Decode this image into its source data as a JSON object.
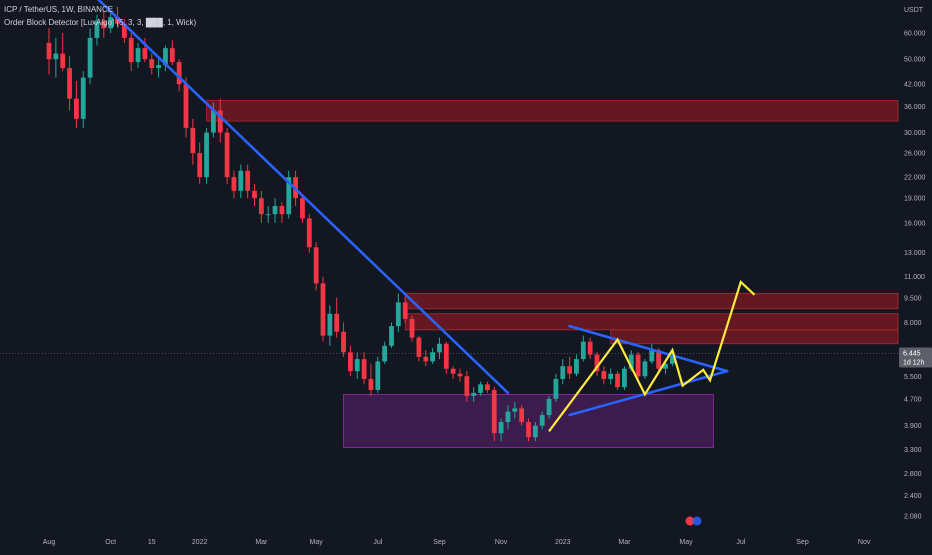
{
  "header": {
    "symbol_line": "ICP / TetherUS, 1W, BINANCE",
    "indicator_line": "Order Block Detector [LuxAlgo] (5, 3, 3, ███, 1, Wick)"
  },
  "colors": {
    "background": "#131722",
    "bull": "#26a69a",
    "bear": "#f23645",
    "trendline": "#2962ff",
    "projection": "#ffeb3b",
    "order_block_bear": "#801922",
    "order_block_bull": "#4a1f5c",
    "price_tag": "#5d606b"
  },
  "chart_data": {
    "type": "candlestick",
    "timeframe": "1W",
    "y_scale": "log",
    "y_unit_label": "USDT",
    "y_ticks": [
      60,
      50,
      42,
      36,
      30,
      26,
      22,
      19,
      16,
      13,
      11,
      9.5,
      8,
      6.445,
      5.5,
      4.7,
      3.9,
      3.3,
      2.8,
      2.4,
      2.08
    ],
    "y_tick_labels": [
      "60.000",
      "50.000",
      "42.000",
      "36.000",
      "30.000",
      "26.000",
      "22.000",
      "19.000",
      "16.000",
      "13.000",
      "11.000",
      "9.500",
      "8.000",
      "",
      "5.500",
      "4.700",
      "3.900",
      "3.300",
      "2.800",
      "2.400",
      "2.080"
    ],
    "x_ticks": [
      {
        "label": "Aug",
        "week": 0
      },
      {
        "label": "Oct",
        "week": 9
      },
      {
        "label": "15",
        "week": 15
      },
      {
        "label": "2022",
        "week": 22
      },
      {
        "label": "Mar",
        "week": 31
      },
      {
        "label": "May",
        "week": 39
      },
      {
        "label": "Jul",
        "week": 48
      },
      {
        "label": "Sep",
        "week": 57
      },
      {
        "label": "Nov",
        "week": 66
      },
      {
        "label": "2023",
        "week": 75
      },
      {
        "label": "Mar",
        "week": 84
      },
      {
        "label": "May",
        "week": 93
      },
      {
        "label": "Jul",
        "week": 101
      },
      {
        "label": "Sep",
        "week": 110
      },
      {
        "label": "Nov",
        "week": 119
      }
    ],
    "last_price": {
      "value": 6.445,
      "label": "6.445",
      "countdown": "1d 12h"
    },
    "candles": [
      {
        "o": 56,
        "h": 62,
        "l": 45,
        "c": 50
      },
      {
        "o": 50,
        "h": 58,
        "l": 44,
        "c": 52
      },
      {
        "o": 52,
        "h": 60,
        "l": 46,
        "c": 47
      },
      {
        "o": 47,
        "h": 51,
        "l": 35,
        "c": 38
      },
      {
        "o": 38,
        "h": 43,
        "l": 31,
        "c": 33
      },
      {
        "o": 33,
        "h": 46,
        "l": 31,
        "c": 44
      },
      {
        "o": 44,
        "h": 62,
        "l": 42,
        "c": 58
      },
      {
        "o": 58,
        "h": 68,
        "l": 55,
        "c": 65
      },
      {
        "o": 65,
        "h": 70,
        "l": 58,
        "c": 62
      },
      {
        "o": 62,
        "h": 70,
        "l": 60,
        "c": 67
      },
      {
        "o": 67,
        "h": 72,
        "l": 62,
        "c": 64
      },
      {
        "o": 64,
        "h": 66,
        "l": 56,
        "c": 58
      },
      {
        "o": 58,
        "h": 60,
        "l": 46,
        "c": 49
      },
      {
        "o": 49,
        "h": 56,
        "l": 47,
        "c": 54
      },
      {
        "o": 54,
        "h": 58,
        "l": 49,
        "c": 50
      },
      {
        "o": 50,
        "h": 52,
        "l": 45,
        "c": 47
      },
      {
        "o": 47,
        "h": 51,
        "l": 44,
        "c": 48
      },
      {
        "o": 48,
        "h": 55,
        "l": 46,
        "c": 54
      },
      {
        "o": 54,
        "h": 57,
        "l": 48,
        "c": 49
      },
      {
        "o": 49,
        "h": 50,
        "l": 40,
        "c": 42
      },
      {
        "o": 42,
        "h": 44,
        "l": 29,
        "c": 31
      },
      {
        "o": 31,
        "h": 33,
        "l": 24,
        "c": 26
      },
      {
        "o": 26,
        "h": 28,
        "l": 21,
        "c": 22
      },
      {
        "o": 22,
        "h": 31,
        "l": 21,
        "c": 30
      },
      {
        "o": 30,
        "h": 37,
        "l": 29,
        "c": 35
      },
      {
        "o": 35,
        "h": 38,
        "l": 28,
        "c": 30
      },
      {
        "o": 30,
        "h": 31,
        "l": 21,
        "c": 22
      },
      {
        "o": 22,
        "h": 23,
        "l": 19,
        "c": 20
      },
      {
        "o": 20,
        "h": 24,
        "l": 19,
        "c": 23
      },
      {
        "o": 23,
        "h": 24,
        "l": 19,
        "c": 20
      },
      {
        "o": 20,
        "h": 21,
        "l": 18,
        "c": 19
      },
      {
        "o": 19,
        "h": 20,
        "l": 16,
        "c": 17
      },
      {
        "o": 17,
        "h": 18,
        "l": 16,
        "c": 17
      },
      {
        "o": 17,
        "h": 19,
        "l": 16,
        "c": 18
      },
      {
        "o": 18,
        "h": 18.5,
        "l": 16,
        "c": 17
      },
      {
        "o": 17,
        "h": 23,
        "l": 16.5,
        "c": 22
      },
      {
        "o": 22,
        "h": 23,
        "l": 18,
        "c": 19
      },
      {
        "o": 19,
        "h": 19.5,
        "l": 16,
        "c": 16.5
      },
      {
        "o": 16.5,
        "h": 17,
        "l": 13,
        "c": 13.5
      },
      {
        "o": 13.5,
        "h": 14,
        "l": 10,
        "c": 10.5
      },
      {
        "o": 10.5,
        "h": 11,
        "l": 7,
        "c": 7.3
      },
      {
        "o": 7.3,
        "h": 9,
        "l": 6.8,
        "c": 8.5
      },
      {
        "o": 8.5,
        "h": 9.5,
        "l": 7.2,
        "c": 7.5
      },
      {
        "o": 7.5,
        "h": 8,
        "l": 6.3,
        "c": 6.5
      },
      {
        "o": 6.5,
        "h": 6.8,
        "l": 5.5,
        "c": 5.7
      },
      {
        "o": 5.7,
        "h": 6.5,
        "l": 5.4,
        "c": 6.2
      },
      {
        "o": 6.2,
        "h": 6.5,
        "l": 5.2,
        "c": 5.4
      },
      {
        "o": 5.4,
        "h": 6,
        "l": 4.8,
        "c": 5
      },
      {
        "o": 5,
        "h": 6.3,
        "l": 4.9,
        "c": 6.1
      },
      {
        "o": 6.1,
        "h": 7,
        "l": 6,
        "c": 6.8
      },
      {
        "o": 6.8,
        "h": 8,
        "l": 6.7,
        "c": 7.8
      },
      {
        "o": 7.8,
        "h": 9.8,
        "l": 7.5,
        "c": 9.2
      },
      {
        "o": 9.2,
        "h": 9.6,
        "l": 8,
        "c": 8.2
      },
      {
        "o": 8.2,
        "h": 8.4,
        "l": 7,
        "c": 7.2
      },
      {
        "o": 7.2,
        "h": 7.3,
        "l": 6.1,
        "c": 6.3
      },
      {
        "o": 6.3,
        "h": 6.6,
        "l": 5.9,
        "c": 6.1
      },
      {
        "o": 6.1,
        "h": 6.7,
        "l": 6,
        "c": 6.5
      },
      {
        "o": 6.5,
        "h": 7.2,
        "l": 6.2,
        "c": 6.9
      },
      {
        "o": 6.9,
        "h": 7,
        "l": 5.6,
        "c": 5.8
      },
      {
        "o": 5.8,
        "h": 5.9,
        "l": 5.4,
        "c": 5.6
      },
      {
        "o": 5.6,
        "h": 5.8,
        "l": 5.3,
        "c": 5.5
      },
      {
        "o": 5.5,
        "h": 5.7,
        "l": 4.6,
        "c": 4.8
      },
      {
        "o": 4.8,
        "h": 5.1,
        "l": 4.6,
        "c": 4.9
      },
      {
        "o": 4.9,
        "h": 5.3,
        "l": 4.8,
        "c": 5.2
      },
      {
        "o": 5.2,
        "h": 5.3,
        "l": 4.9,
        "c": 5
      },
      {
        "o": 5,
        "h": 5.1,
        "l": 3.5,
        "c": 3.7
      },
      {
        "o": 3.7,
        "h": 4.1,
        "l": 3.5,
        "c": 4
      },
      {
        "o": 4,
        "h": 4.5,
        "l": 3.8,
        "c": 4.3
      },
      {
        "o": 4.3,
        "h": 4.6,
        "l": 4.1,
        "c": 4.4
      },
      {
        "o": 4.4,
        "h": 4.5,
        "l": 3.9,
        "c": 4
      },
      {
        "o": 4,
        "h": 4.1,
        "l": 3.5,
        "c": 3.6
      },
      {
        "o": 3.6,
        "h": 4,
        "l": 3.5,
        "c": 3.9
      },
      {
        "o": 3.9,
        "h": 4.3,
        "l": 3.8,
        "c": 4.2
      },
      {
        "o": 4.2,
        "h": 4.8,
        "l": 4.1,
        "c": 4.7
      },
      {
        "o": 4.7,
        "h": 5.6,
        "l": 4.6,
        "c": 5.4
      },
      {
        "o": 5.4,
        "h": 6.2,
        "l": 5.2,
        "c": 5.9
      },
      {
        "o": 5.9,
        "h": 6.3,
        "l": 5.4,
        "c": 5.6
      },
      {
        "o": 5.6,
        "h": 6.4,
        "l": 5.5,
        "c": 6.2
      },
      {
        "o": 6.2,
        "h": 7.3,
        "l": 6.1,
        "c": 7
      },
      {
        "o": 7,
        "h": 7.2,
        "l": 6.2,
        "c": 6.4
      },
      {
        "o": 6.4,
        "h": 6.5,
        "l": 5.5,
        "c": 5.7
      },
      {
        "o": 5.7,
        "h": 5.9,
        "l": 5.2,
        "c": 5.4
      },
      {
        "o": 5.4,
        "h": 5.8,
        "l": 5.2,
        "c": 5.6
      },
      {
        "o": 5.6,
        "h": 5.7,
        "l": 5,
        "c": 5.1
      },
      {
        "o": 5.1,
        "h": 5.9,
        "l": 5,
        "c": 5.8
      },
      {
        "o": 5.8,
        "h": 6.6,
        "l": 5.7,
        "c": 6.4
      },
      {
        "o": 6.4,
        "h": 6.5,
        "l": 5.3,
        "c": 5.5
      },
      {
        "o": 5.5,
        "h": 6.2,
        "l": 5.4,
        "c": 6.1
      },
      {
        "o": 6.1,
        "h": 6.9,
        "l": 6,
        "c": 6.6
      },
      {
        "o": 6.6,
        "h": 6.7,
        "l": 5.6,
        "c": 5.8
      },
      {
        "o": 5.8,
        "h": 6.2,
        "l": 5.6,
        "c": 6
      },
      {
        "o": 6,
        "h": 6.6,
        "l": 5.9,
        "c": 6.445
      }
    ],
    "order_blocks": [
      {
        "kind": "bearish",
        "from_week": 23,
        "to_week": 124,
        "low": 32.5,
        "high": 37.5
      },
      {
        "kind": "bearish",
        "from_week": 52,
        "to_week": 124,
        "low": 8.8,
        "high": 9.8
      },
      {
        "kind": "bearish",
        "from_week": 52,
        "to_week": 124,
        "low": 7.6,
        "high": 8.5
      },
      {
        "kind": "bearish",
        "from_week": 82,
        "to_week": 124,
        "low": 6.9,
        "high": 7.6
      },
      {
        "kind": "bullish",
        "from_week": 43,
        "to_week": 97,
        "low": 3.35,
        "high": 4.85
      }
    ],
    "trendlines": [
      {
        "name": "downtrend",
        "points": [
          [
            6,
            80
          ],
          [
            67,
            4.9
          ]
        ]
      },
      {
        "name": "triangle-upper",
        "points": [
          [
            76,
            7.8
          ],
          [
            99,
            5.7
          ]
        ]
      },
      {
        "name": "triangle-lower",
        "points": [
          [
            76,
            4.2
          ],
          [
            99,
            5.7
          ]
        ]
      }
    ],
    "projection_path": [
      [
        73,
        3.75
      ],
      [
        83,
        7.1
      ],
      [
        87,
        4.85
      ],
      [
        91,
        6.6
      ],
      [
        92.5,
        5.15
      ],
      [
        95.5,
        5.75
      ],
      [
        96.5,
        5.35
      ],
      [
        101,
        10.6
      ],
      [
        103,
        9.7
      ]
    ]
  }
}
